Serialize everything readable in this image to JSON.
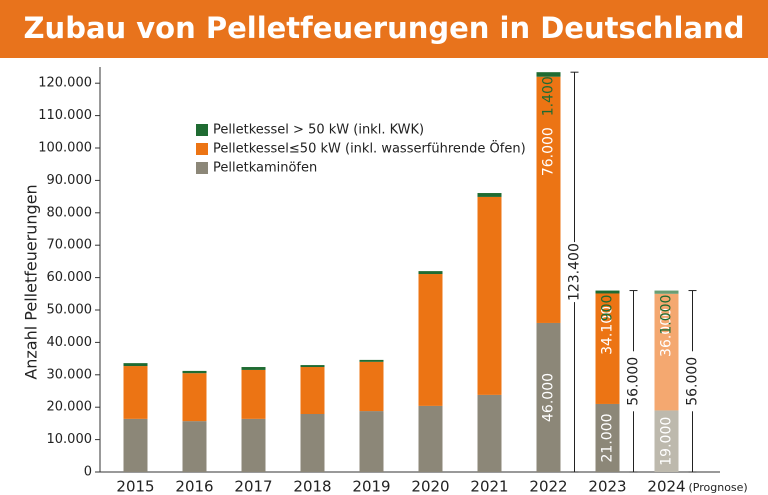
{
  "chart_data": {
    "type": "stacked-bar",
    "title": "Zubau von Pelletfeuerungen in Deutschland",
    "y_label": "Anzahl Pelletfeuerungen",
    "categories": [
      "2015",
      "2016",
      "2017",
      "2018",
      "2019",
      "2020",
      "2021",
      "2022",
      "2023",
      "2024"
    ],
    "forecast_from": "2024",
    "forecast_label": "(Prognose)",
    "series": [
      {
        "name": "Pelletkaminöfen",
        "color": "#8c8778",
        "forecast_color": "#bdb9ad",
        "values": [
          16400,
          15700,
          16400,
          17900,
          18800,
          20400,
          23800,
          46000,
          21000,
          19000
        ],
        "value_labels": [
          null,
          null,
          null,
          null,
          null,
          null,
          null,
          "46.000",
          "21.000",
          "19.000"
        ]
      },
      {
        "name": "Pelletkessel≤50 kW (inkl. wasserführende Öfen)",
        "color": "#ec7414",
        "forecast_color": "#f4a870",
        "values": [
          16300,
          14800,
          15100,
          14500,
          15200,
          40700,
          61100,
          76000,
          34100,
          36000
        ],
        "value_labels": [
          null,
          null,
          null,
          null,
          null,
          null,
          null,
          "76.000",
          "34.100",
          "36.000"
        ]
      },
      {
        "name": "Pelletkessel > 50 kW (inkl. KWK)",
        "color": "#1f6b32",
        "forecast_color": "#6a9e73",
        "values": [
          900,
          700,
          900,
          600,
          600,
          900,
          1200,
          1400,
          900,
          1000
        ],
        "value_labels": [
          null,
          null,
          null,
          null,
          null,
          null,
          null,
          "1.400",
          "900",
          "1.000"
        ]
      }
    ],
    "totals": {
      "values": [
        null,
        null,
        null,
        null,
        null,
        null,
        null,
        123400,
        56000,
        56000
      ],
      "value_labels": [
        null,
        null,
        null,
        null,
        null,
        null,
        null,
        "123.400",
        "56.000",
        "56.000"
      ]
    },
    "ylim": [
      0,
      125000
    ],
    "yticks": [
      {
        "value": 0,
        "label": "0"
      },
      {
        "value": 10000,
        "label": "10.000"
      },
      {
        "value": 20000,
        "label": "20.000"
      },
      {
        "value": 30000,
        "label": "30.000"
      },
      {
        "value": 40000,
        "label": "40.000"
      },
      {
        "value": 50000,
        "label": "50.000"
      },
      {
        "value": 60000,
        "label": "60.000"
      },
      {
        "value": 70000,
        "label": "70.000"
      },
      {
        "value": 80000,
        "label": "80.000"
      },
      {
        "value": 90000,
        "label": "90.000"
      },
      {
        "value": 100000,
        "label": "100.000"
      },
      {
        "value": 110000,
        "label": "110.000"
      },
      {
        "value": 120000,
        "label": "120.000"
      }
    ],
    "grid": false,
    "legend_position": "top-left"
  }
}
